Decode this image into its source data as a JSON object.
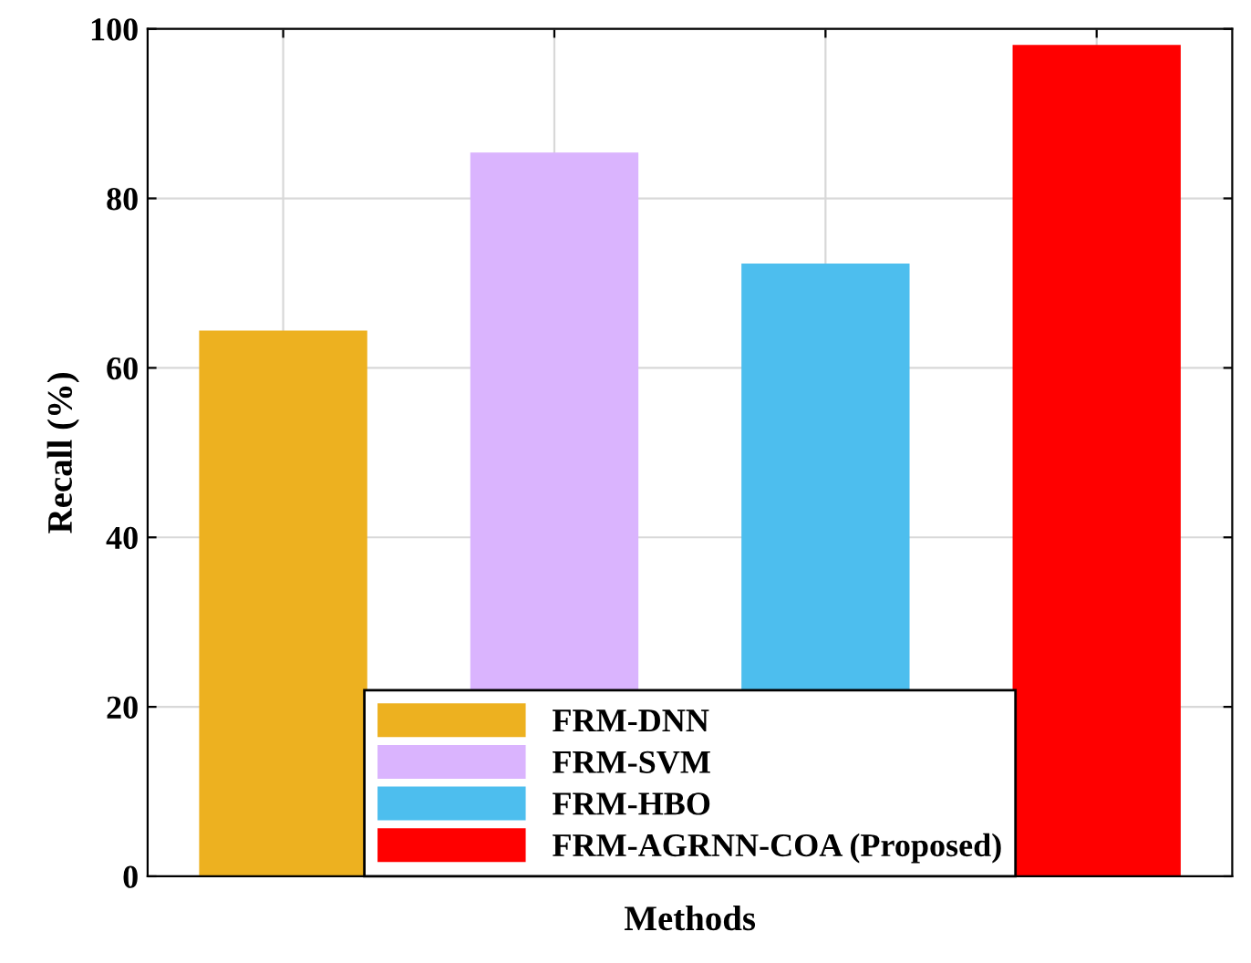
{
  "chart_data": {
    "type": "bar",
    "xlabel": "Methods",
    "ylabel": "Recall (%)",
    "categories": [
      null,
      null,
      null,
      null
    ],
    "series": [
      {
        "name": "FRM-DNN",
        "color": "#edb120",
        "values": [
          64.4,
          null,
          null,
          null
        ]
      },
      {
        "name": "FRM-SVM",
        "color": "#dab4fe",
        "values": [
          null,
          85.4,
          null,
          null
        ]
      },
      {
        "name": "FRM-HBO",
        "color": "#4dbeee",
        "values": [
          null,
          null,
          72.3,
          null
        ]
      },
      {
        "name": "FRM-AGRNN-COA (Proposed)",
        "color": "#ff0000",
        "values": [
          null,
          null,
          null,
          98.1
        ]
      }
    ],
    "ylim": [
      0,
      100
    ],
    "yticks": [
      0,
      20,
      40,
      60,
      80,
      100
    ],
    "grid": true,
    "legend": "bottom"
  }
}
